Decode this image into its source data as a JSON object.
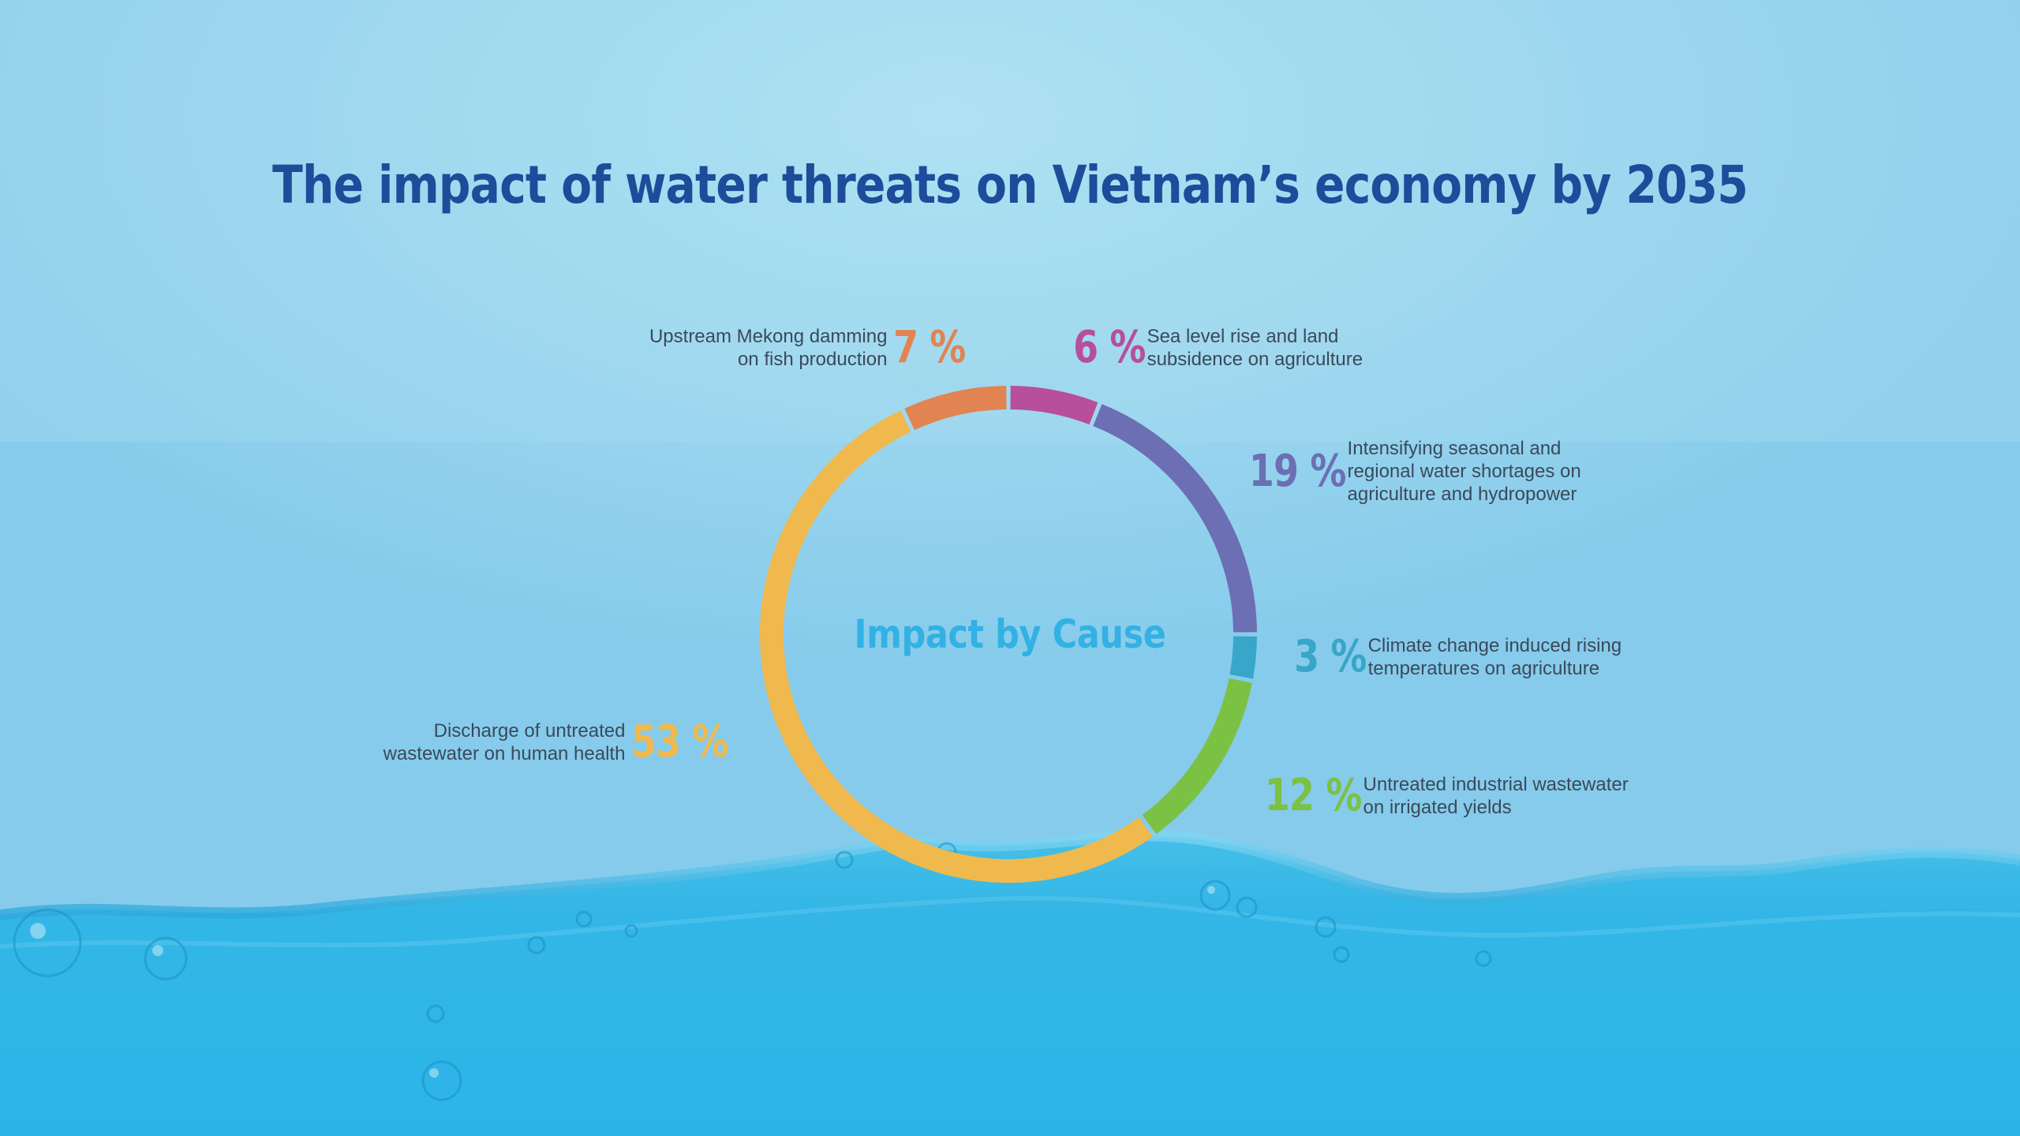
{
  "title": "The impact of water threats on Vietnam’s economy by 2035",
  "chart_data": {
    "type": "pie",
    "center_label": "Impact by Cause",
    "slices": [
      {
        "label_lines": [
          "Sea level rise and land",
          "subsidence on agriculture"
        ],
        "value": 6,
        "value_text": "6 %",
        "color": "#b84f9c"
      },
      {
        "label_lines": [
          "Intensifying seasonal and",
          "regional water shortages on",
          "agriculture and hydropower"
        ],
        "value": 19,
        "value_text": "19 %",
        "color": "#6c6fb4"
      },
      {
        "label_lines": [
          "Climate change induced rising",
          "temperatures on agriculture"
        ],
        "value": 3,
        "value_text": "3 %",
        "color": "#37a6c9"
      },
      {
        "label_lines": [
          "Untreated industrial wastewater",
          "on irrigated yields"
        ],
        "value": 12,
        "value_text": "12 %",
        "color": "#7bc143"
      },
      {
        "label_lines": [
          "Discharge of untreated",
          "wastewater on human health"
        ],
        "value": 53,
        "value_text": "53 %",
        "color": "#f0b94d"
      },
      {
        "label_lines": [
          "Upstream Mekong damming",
          "on fish production"
        ],
        "value": 7,
        "value_text": "7 %",
        "color": "#e18452"
      }
    ]
  }
}
